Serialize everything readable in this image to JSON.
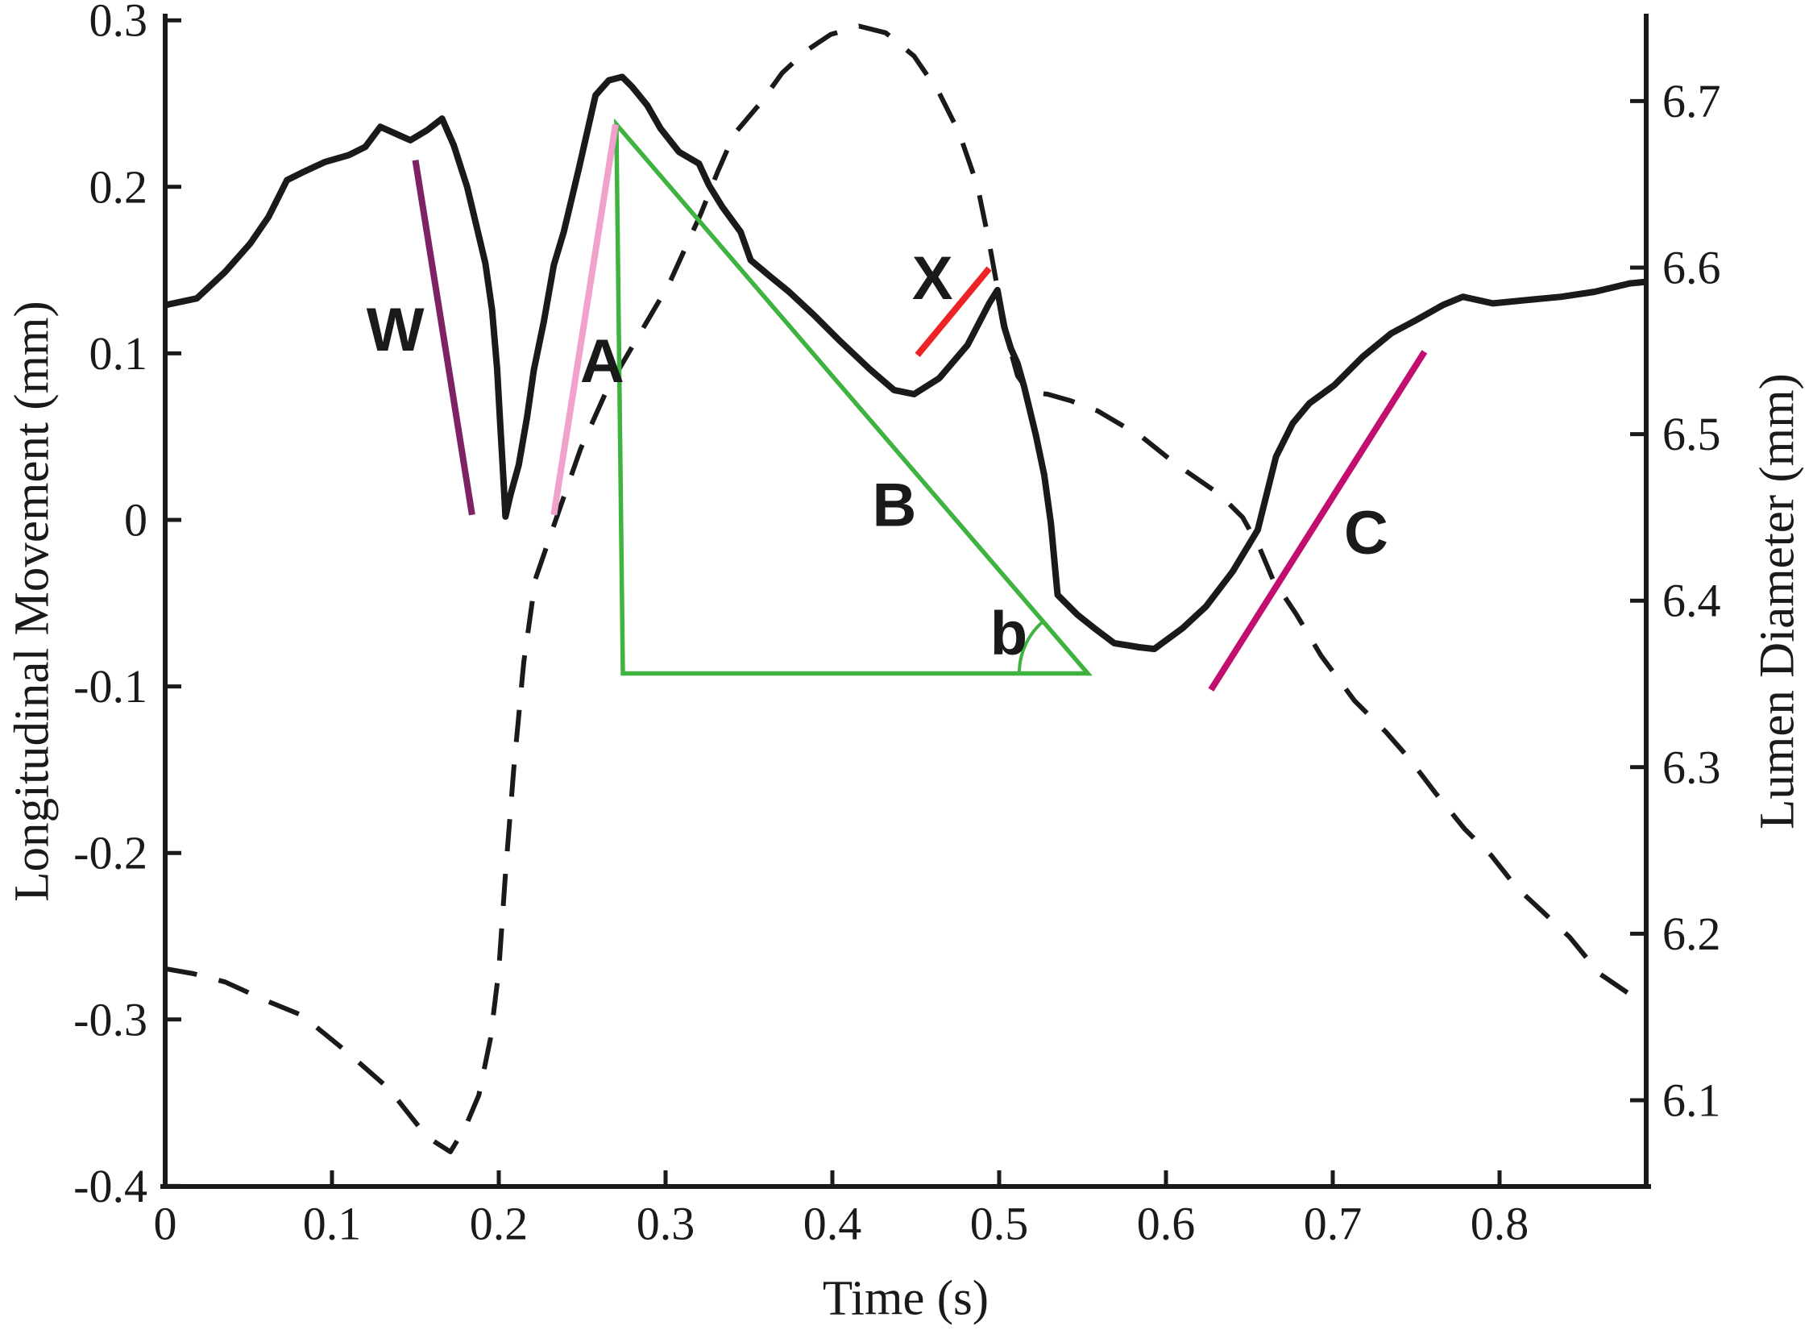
{
  "chart_data": {
    "type": "line",
    "title": "",
    "grid": false,
    "legend": "none",
    "x_axis": {
      "label": "Time (s)",
      "min": 0,
      "max": 0.888,
      "ticks": [
        {
          "v": 0,
          "label": "0"
        },
        {
          "v": 0.1,
          "label": "0.1"
        },
        {
          "v": 0.2,
          "label": "0.2"
        },
        {
          "v": 0.3,
          "label": "0.3"
        },
        {
          "v": 0.4,
          "label": "0.4"
        },
        {
          "v": 0.5,
          "label": "0.5"
        },
        {
          "v": 0.6,
          "label": "0.6"
        },
        {
          "v": 0.7,
          "label": "0.7"
        },
        {
          "v": 0.8,
          "label": "0.8"
        }
      ]
    },
    "y_axis_left": {
      "label": "Longitudinal Movement (mm)",
      "min": -0.4,
      "max": 0.3,
      "ticks": [
        {
          "v": 0.3,
          "label": "0.3"
        },
        {
          "v": 0.2,
          "label": "0.2"
        },
        {
          "v": 0.1,
          "label": "0.1"
        },
        {
          "v": 0,
          "label": "0"
        },
        {
          "v": -0.1,
          "label": "-0.1"
        },
        {
          "v": -0.2,
          "label": "-0.2"
        },
        {
          "v": -0.3,
          "label": "-0.3"
        },
        {
          "v": -0.4,
          "label": "-0.4"
        }
      ]
    },
    "y_axis_right": {
      "label": "Lumen Diameter (mm)",
      "min": 6.05,
      "max": 6.75,
      "ticks": [
        {
          "v": 6.7,
          "label": "6.7"
        },
        {
          "v": 6.6,
          "label": "6.6"
        },
        {
          "v": 6.5,
          "label": "6.5"
        },
        {
          "v": 6.4,
          "label": "6.4"
        },
        {
          "v": 6.3,
          "label": "6.3"
        },
        {
          "v": 6.2,
          "label": "6.2"
        },
        {
          "v": 6.1,
          "label": "6.1"
        }
      ]
    },
    "series": [
      {
        "name": "Longitudinal Movement",
        "axis": "left",
        "style": "solid",
        "color": "#1a1a1a",
        "width": 8,
        "points": [
          [
            0,
            0.129
          ],
          [
            0.019,
            0.133
          ],
          [
            0.036,
            0.149
          ],
          [
            0.051,
            0.166
          ],
          [
            0.062,
            0.182
          ],
          [
            0.073,
            0.204
          ],
          [
            0.083,
            0.209
          ],
          [
            0.096,
            0.215
          ],
          [
            0.11,
            0.219
          ],
          [
            0.12,
            0.224
          ],
          [
            0.129,
            0.236
          ],
          [
            0.138,
            0.232
          ],
          [
            0.147,
            0.228
          ],
          [
            0.157,
            0.234
          ],
          [
            0.166,
            0.241
          ],
          [
            0.173,
            0.225
          ],
          [
            0.181,
            0.2
          ],
          [
            0.187,
            0.175
          ],
          [
            0.192,
            0.154
          ],
          [
            0.196,
            0.126
          ],
          [
            0.199,
            0.091
          ],
          [
            0.201,
            0.055
          ],
          [
            0.203,
            0.021
          ],
          [
            0.204,
            0.002
          ],
          [
            0.207,
            0.015
          ],
          [
            0.212,
            0.033
          ],
          [
            0.217,
            0.062
          ],
          [
            0.221,
            0.09
          ],
          [
            0.227,
            0.119
          ],
          [
            0.233,
            0.153
          ],
          [
            0.239,
            0.173
          ],
          [
            0.248,
            0.211
          ],
          [
            0.258,
            0.255
          ],
          [
            0.266,
            0.264
          ],
          [
            0.274,
            0.266
          ],
          [
            0.28,
            0.26
          ],
          [
            0.289,
            0.249
          ],
          [
            0.297,
            0.235
          ],
          [
            0.308,
            0.221
          ],
          [
            0.32,
            0.214
          ],
          [
            0.326,
            0.201
          ],
          [
            0.334,
            0.188
          ],
          [
            0.345,
            0.173
          ],
          [
            0.351,
            0.156
          ],
          [
            0.363,
            0.146
          ],
          [
            0.374,
            0.137
          ],
          [
            0.389,
            0.123
          ],
          [
            0.405,
            0.107
          ],
          [
            0.423,
            0.09
          ],
          [
            0.437,
            0.078
          ],
          [
            0.449,
            0.0755
          ],
          [
            0.464,
            0.085
          ],
          [
            0.481,
            0.105
          ],
          [
            0.494,
            0.13
          ],
          [
            0.499,
            0.138
          ],
          [
            0.503,
            0.116
          ],
          [
            0.507,
            0.103
          ],
          [
            0.511,
            0.094
          ],
          [
            0.515,
            0.08
          ],
          [
            0.522,
            0.051
          ],
          [
            0.527,
            0.027
          ],
          [
            0.531,
            -0.002
          ],
          [
            0.535,
            -0.045
          ],
          [
            0.547,
            -0.057
          ],
          [
            0.557,
            -0.065
          ],
          [
            0.569,
            -0.074
          ],
          [
            0.584,
            -0.0765
          ],
          [
            0.593,
            -0.0775
          ],
          [
            0.61,
            -0.065
          ],
          [
            0.624,
            -0.052
          ],
          [
            0.64,
            -0.031
          ],
          [
            0.655,
            -0.006
          ],
          [
            0.666,
            0.038
          ],
          [
            0.676,
            0.058
          ],
          [
            0.686,
            0.07
          ],
          [
            0.701,
            0.081
          ],
          [
            0.718,
            0.098
          ],
          [
            0.735,
            0.112
          ],
          [
            0.75,
            0.12
          ],
          [
            0.766,
            0.129
          ],
          [
            0.778,
            0.134
          ],
          [
            0.796,
            0.13
          ],
          [
            0.816,
            0.132
          ],
          [
            0.837,
            0.134
          ],
          [
            0.857,
            0.137
          ],
          [
            0.878,
            0.142
          ],
          [
            0.888,
            0.143
          ]
        ]
      },
      {
        "name": "Lumen Diameter",
        "axis": "right",
        "style": "dashed",
        "color": "#1a1a1a",
        "width": 6,
        "points": [
          [
            0,
            6.179
          ],
          [
            0.017,
            6.176
          ],
          [
            0.036,
            6.171
          ],
          [
            0.06,
            6.16
          ],
          [
            0.082,
            6.151
          ],
          [
            0.109,
            6.129
          ],
          [
            0.134,
            6.107
          ],
          [
            0.157,
            6.078
          ],
          [
            0.171,
            6.069
          ],
          [
            0.18,
            6.084
          ],
          [
            0.188,
            6.103
          ],
          [
            0.195,
            6.137
          ],
          [
            0.2,
            6.178
          ],
          [
            0.204,
            6.236
          ],
          [
            0.209,
            6.299
          ],
          [
            0.215,
            6.363
          ],
          [
            0.222,
            6.413
          ],
          [
            0.234,
            6.448
          ],
          [
            0.249,
            6.491
          ],
          [
            0.265,
            6.527
          ],
          [
            0.285,
            6.561
          ],
          [
            0.302,
            6.59
          ],
          [
            0.321,
            6.632
          ],
          [
            0.331,
            6.657
          ],
          [
            0.341,
            6.68
          ],
          [
            0.357,
            6.699
          ],
          [
            0.37,
            6.717
          ],
          [
            0.384,
            6.73
          ],
          [
            0.399,
            6.74
          ],
          [
            0.416,
            6.745
          ],
          [
            0.432,
            6.741
          ],
          [
            0.449,
            6.727
          ],
          [
            0.464,
            6.705
          ],
          [
            0.476,
            6.681
          ],
          [
            0.487,
            6.649
          ],
          [
            0.494,
            6.615
          ],
          [
            0.5,
            6.582
          ],
          [
            0.506,
            6.553
          ],
          [
            0.511,
            6.535
          ],
          [
            0.518,
            6.525
          ],
          [
            0.529,
            6.524
          ],
          [
            0.543,
            6.52
          ],
          [
            0.559,
            6.514
          ],
          [
            0.586,
            6.498
          ],
          [
            0.606,
            6.482
          ],
          [
            0.632,
            6.464
          ],
          [
            0.646,
            6.45
          ],
          [
            0.656,
            6.432
          ],
          [
            0.664,
            6.413
          ],
          [
            0.678,
            6.392
          ],
          [
            0.693,
            6.367
          ],
          [
            0.713,
            6.34
          ],
          [
            0.732,
            6.321
          ],
          [
            0.746,
            6.305
          ],
          [
            0.762,
            6.284
          ],
          [
            0.779,
            6.263
          ],
          [
            0.795,
            6.247
          ],
          [
            0.81,
            6.228
          ],
          [
            0.825,
            6.214
          ],
          [
            0.842,
            6.198
          ],
          [
            0.86,
            6.176
          ],
          [
            0.882,
            6.161
          ],
          [
            0.888,
            6.158
          ]
        ]
      }
    ],
    "annotations": {
      "lines": [
        {
          "id": "W",
          "label": "W",
          "color": "#7d2264",
          "width": 8,
          "x1": 0.15,
          "y1": 0.216,
          "x2": 0.184,
          "y2": 0.003,
          "label_x": 0.138,
          "label_y": 0.114
        },
        {
          "id": "A",
          "label": "A",
          "color": "#f0a2cd",
          "width": 8,
          "x1": 0.233,
          "y1": 0.003,
          "x2": 0.27,
          "y2": 0.2375,
          "label_x": 0.262,
          "label_y": 0.095
        },
        {
          "id": "X",
          "label": "X",
          "color": "#ec2426",
          "width": 8,
          "x1": 0.451,
          "y1": 0.099,
          "x2": 0.494,
          "y2": 0.151,
          "label_x": 0.46,
          "label_y": 0.145
        },
        {
          "id": "C",
          "label": "C",
          "color": "#c20e6e",
          "width": 8,
          "x1": 0.627,
          "y1": -0.102,
          "x2": 0.755,
          "y2": 0.101,
          "label_x": 0.72,
          "label_y": -0.008
        }
      ],
      "triangle": {
        "color": "#3fb33f",
        "width": 5.5,
        "apex": {
          "x": 0.2705,
          "y": 0.2375
        },
        "base_left": {
          "x": 0.2744,
          "y": -0.0922
        },
        "base_right": {
          "x": 0.5531,
          "y": -0.0922
        },
        "label_B": {
          "text": "B",
          "x": 0.4372,
          "y": 0.0087
        },
        "label_b": {
          "text": "b",
          "x": 0.5058,
          "y": -0.0682
        },
        "angle_arc_radius_px": 85
      }
    }
  }
}
